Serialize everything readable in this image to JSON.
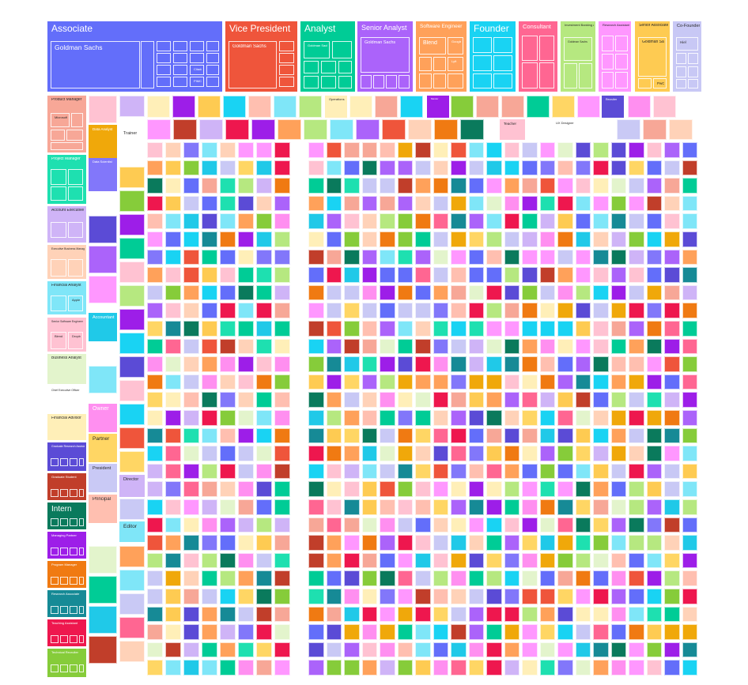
{
  "chart_data": {
    "type": "treemap",
    "title": "",
    "hierarchy": [
      "job title",
      "company"
    ],
    "nodes": [
      {
        "label": "Associate",
        "color": "#636efa",
        "children": [
          "Goldman Sachs",
          "Citadel",
          "PIMCO",
          "Fidelity"
        ]
      },
      {
        "label": "Vice President",
        "color": "#ef553b",
        "children": [
          "Goldman Sachs"
        ]
      },
      {
        "label": "Analyst",
        "color": "#00cc96",
        "children": [
          "Goldman Sachs"
        ]
      },
      {
        "label": "Senior Analyst",
        "color": "#ab63fa",
        "children": [
          "Goldman Sachs"
        ]
      },
      {
        "label": "Software Engineer",
        "color": "#ffa15a",
        "children": [
          "Blend",
          "Google",
          "Lyft"
        ]
      },
      {
        "label": "Founder",
        "color": "#19d3f3",
        "children": []
      },
      {
        "label": "Consultant",
        "color": "#ff6692",
        "children": []
      },
      {
        "label": "Investment Banking Analyst",
        "color": "#b6e880",
        "children": [
          "Goldman Sachs"
        ]
      },
      {
        "label": "Research Assistant",
        "color": "#ff97ff",
        "children": []
      },
      {
        "label": "Senior Associate",
        "color": "#fecb52",
        "children": [
          "Goldman Sachs",
          "PwC"
        ]
      },
      {
        "label": "Co-Founder",
        "color": "#c8c8f5",
        "children": [
          "Hiel"
        ]
      },
      {
        "label": "Product Manager",
        "color": "#f7a797",
        "children": [
          "Microsoft"
        ]
      },
      {
        "label": "Project Manager",
        "color": "#1ee0b0",
        "children": []
      },
      {
        "label": "Account Executive",
        "color": "#cfb4f7",
        "children": []
      },
      {
        "label": "Executive Business Manager",
        "color": "#ffd2b8",
        "children": []
      },
      {
        "label": "Financial Analyst",
        "color": "#7fe6f8",
        "children": [
          "Apple"
        ]
      },
      {
        "label": "Senior Software Engineer",
        "color": "#ffc2d2",
        "children": [
          "Blend",
          "Dropbox"
        ]
      },
      {
        "label": "Business Analyst",
        "color": "#e3f4cc",
        "children": []
      },
      {
        "label": "Chief Executive Officer",
        "color": "#ffffff",
        "children": []
      },
      {
        "label": "Financial Advisor",
        "color": "#ffefb8",
        "children": []
      },
      {
        "label": "Graduate Research Assistant",
        "color": "#5b4bd6",
        "children": []
      },
      {
        "label": "Graduate Student",
        "color": "#c13e2a",
        "children": []
      },
      {
        "label": "Intern",
        "color": "#0a7a5c",
        "children": []
      },
      {
        "label": "Managing Partner",
        "color": "#9d1ee8",
        "children": []
      },
      {
        "label": "Program Manager",
        "color": "#f07a12",
        "children": []
      },
      {
        "label": "Research Associate",
        "color": "#168a96",
        "children": []
      },
      {
        "label": "Teaching Assistant",
        "color": "#ee174e",
        "children": []
      },
      {
        "label": "Technical Recruiter",
        "color": "#86cc3a",
        "children": []
      },
      {
        "label": "Data Analyst",
        "color": "#f0a80a",
        "children": []
      },
      {
        "label": "Data Scientist",
        "color": "#8277fa",
        "children": []
      },
      {
        "label": "Accountant",
        "color": "#20c9e8",
        "children": []
      },
      {
        "label": "Owner",
        "color": "#ff8ff0",
        "children": []
      },
      {
        "label": "Partner",
        "color": "#ffd664",
        "children": []
      },
      {
        "label": "President",
        "color": "#c9c9f5",
        "children": []
      },
      {
        "label": "Principal",
        "color": "#ffbfb0",
        "children": []
      },
      {
        "label": "Trainer",
        "color": "#ffffff",
        "children": []
      },
      {
        "label": "Director",
        "color": "#cfb4f7",
        "children": []
      },
      {
        "label": "Editor",
        "color": "#7fe6f8",
        "children": []
      },
      {
        "label": "Operations",
        "color": "#ffefb8",
        "children": []
      },
      {
        "label": "Teacher",
        "color": "#ffc2d2",
        "children": []
      },
      {
        "label": "UX Designer",
        "color": "#ffffff",
        "children": []
      },
      {
        "label": "Mentor",
        "color": "#9d1ee8",
        "children": []
      },
      {
        "label": "Recruiter",
        "color": "#5b4bd6",
        "children": []
      }
    ],
    "visible_text": [
      "Associate",
      "Goldman Sachs",
      "Citadel",
      "PIMCO",
      "Fidelity",
      "Vice President",
      "Analyst",
      "Senior Analyst",
      "Software Engineer",
      "Blend",
      "Google",
      "Lyft",
      "Founder",
      "Consultant",
      "Senior Associate",
      "PwC",
      "Co-Founder",
      "Hiel",
      "Product Manager",
      "Microsoft",
      "Project Manager",
      "Account Executive",
      "Financial Analyst",
      "Apple",
      "Business Analyst",
      "Financial Advisor",
      "Intern",
      "Owner",
      "Partner",
      "President",
      "Principal",
      "Trainer",
      "Director",
      "Editor",
      "Operations",
      "Teacher",
      "UX Designer",
      "Accountant",
      "Graduate Student",
      "Managing Partner",
      "Program Manager",
      "Research Associate",
      "Teaching Assistant",
      "Technical Recruiter",
      "Data Analyst",
      "Data Scientist"
    ],
    "palette": [
      "#636efa",
      "#ef553b",
      "#00cc96",
      "#ab63fa",
      "#ffa15a",
      "#19d3f3",
      "#ff6692",
      "#b6e880",
      "#ff97ff",
      "#fecb52",
      "#c8c8f5",
      "#f7a797",
      "#1ee0b0",
      "#cfb4f7",
      "#ffd2b8",
      "#7fe6f8",
      "#ffc2d2",
      "#e3f4cc",
      "#ffefb8",
      "#5b4bd6",
      "#c13e2a",
      "#0a7a5c",
      "#9d1ee8",
      "#f07a12",
      "#168a96",
      "#ee174e",
      "#86cc3a",
      "#f0a80a",
      "#8277fa",
      "#20c9e8",
      "#ff8ff0",
      "#ffd664",
      "#c9c9f5",
      "#ffbfb0"
    ]
  }
}
